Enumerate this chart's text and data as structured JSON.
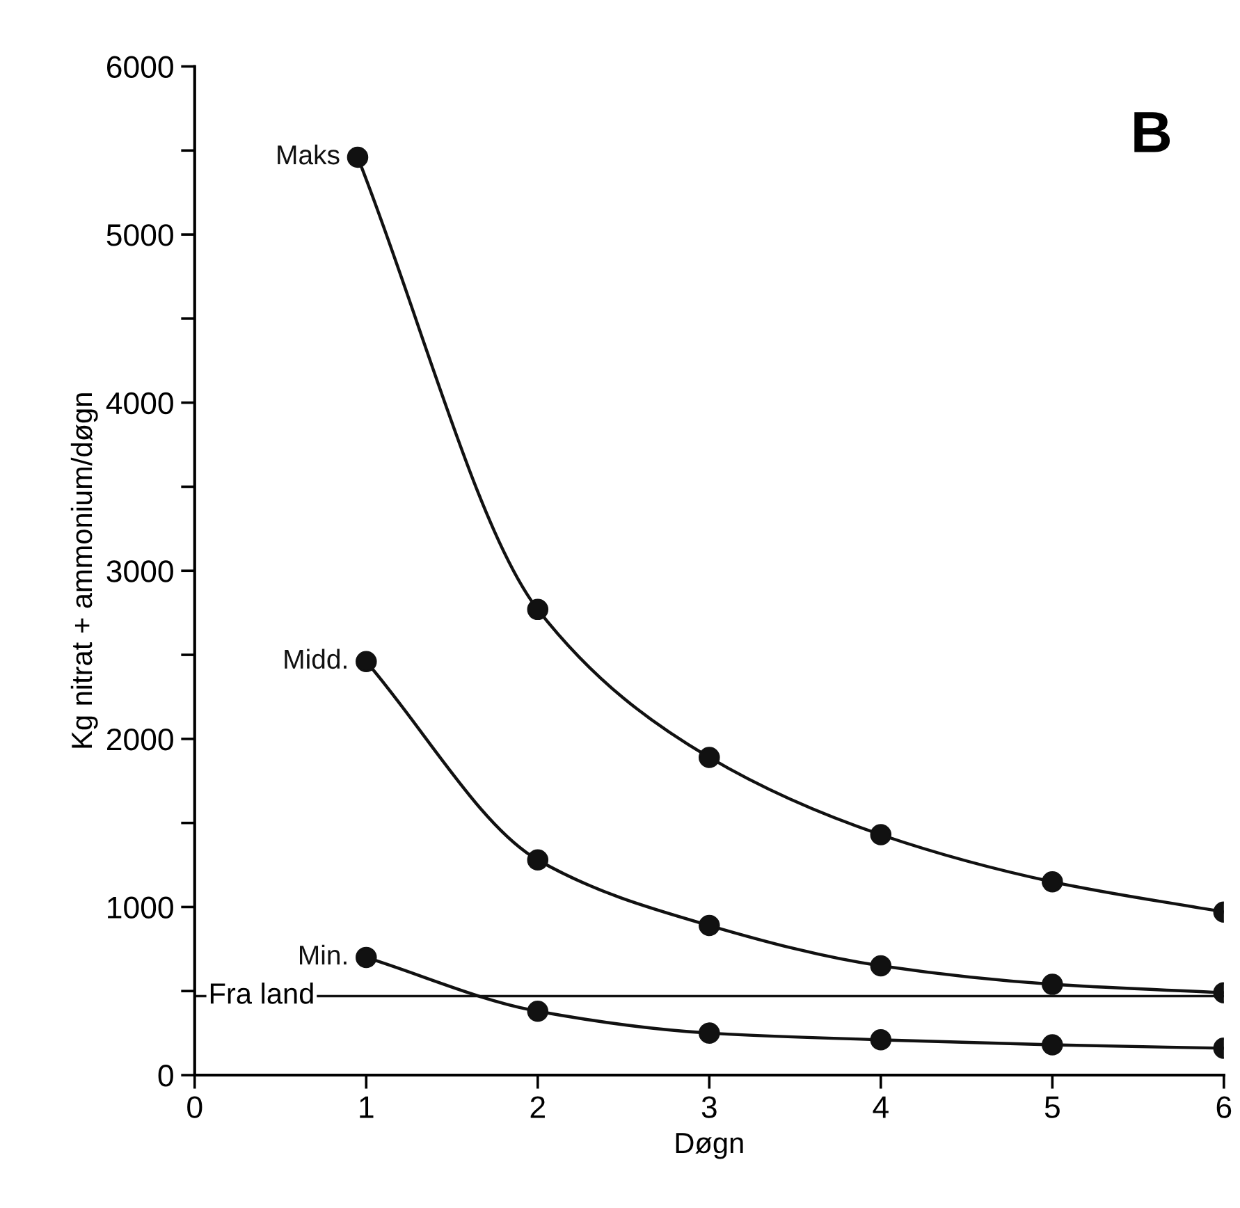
{
  "chart_data": {
    "type": "line",
    "xlabel": "Døgn",
    "ylabel": "Kg nitrat + ammonium/døgn",
    "series": [
      {
        "name": "Maks",
        "color": "#111111",
        "x": [
          0.95,
          2,
          3,
          4,
          5,
          6
        ],
        "values": [
          5460,
          2770,
          1890,
          1430,
          1150,
          970
        ]
      },
      {
        "name": "Midd.",
        "color": "#111111",
        "x": [
          1,
          2,
          3,
          4,
          5,
          6
        ],
        "values": [
          2460,
          1280,
          890,
          650,
          540,
          490
        ]
      },
      {
        "name": "Min.",
        "color": "#111111",
        "x": [
          1,
          2,
          3,
          4,
          5,
          6
        ],
        "values": [
          700,
          380,
          250,
          210,
          180,
          160
        ]
      }
    ],
    "ref_lines": [
      {
        "axis": "y",
        "value": 470,
        "label": "Fra land",
        "color": "#111111",
        "line_style": "solid"
      }
    ],
    "annotations": [
      "B"
    ],
    "xlim": [
      0,
      6
    ],
    "ylim": [
      0,
      6000
    ],
    "xticks": [
      0,
      1,
      2,
      3,
      4,
      5,
      6
    ],
    "yticks": [
      0,
      {
        "value": 500,
        "label": null
      },
      1000,
      {
        "value": 1500,
        "label": null
      },
      2000,
      {
        "value": 2500,
        "label": null
      },
      3000,
      {
        "value": 3500,
        "label": null
      },
      4000,
      {
        "value": 4500,
        "label": null
      },
      5000,
      {
        "value": 5500,
        "label": null
      },
      6000
    ],
    "grid": false,
    "legend": false,
    "marker": "circle",
    "line_style": "solid"
  }
}
